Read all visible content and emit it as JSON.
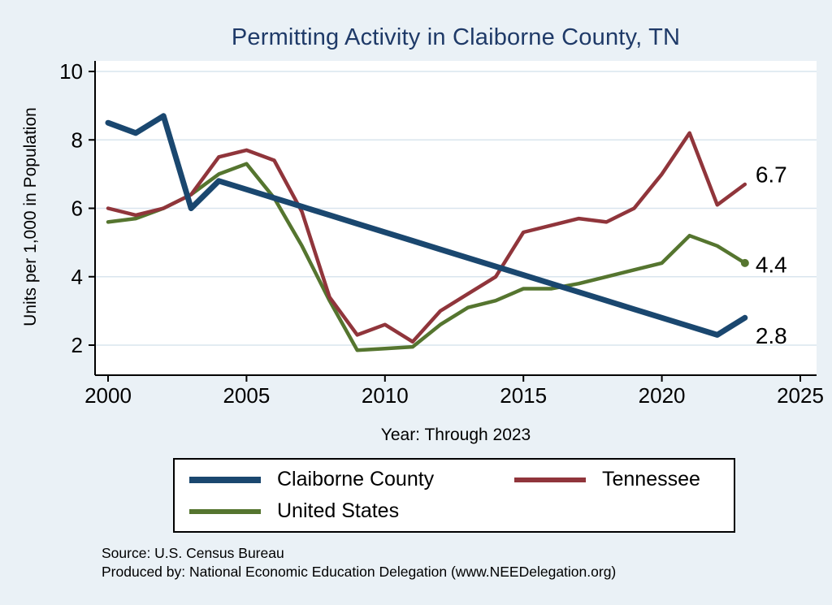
{
  "chart_data": {
    "type": "line",
    "title": "Permitting Activity in Claiborne County, TN",
    "xlabel": "Year: Through 2023",
    "ylabel": "Units per 1,000 in Population",
    "xlim": [
      2000,
      2025
    ],
    "ylim": [
      2,
      10
    ],
    "xticks": [
      2000,
      2005,
      2010,
      2015,
      2020,
      2025
    ],
    "yticks": [
      2,
      4,
      6,
      8,
      10
    ],
    "grid": "horizontal",
    "legend_position": "bottom",
    "x": [
      2000,
      2001,
      2002,
      2003,
      2004,
      2005,
      2006,
      2007,
      2008,
      2009,
      2010,
      2011,
      2012,
      2013,
      2014,
      2015,
      2016,
      2017,
      2018,
      2019,
      2020,
      2021,
      2022,
      2023
    ],
    "series": [
      {
        "name": "Claiborne County",
        "color": "#1a476f",
        "line_width": 7,
        "end_label": "2.8",
        "end_marker": false,
        "values": [
          8.5,
          8.2,
          8.7,
          6.0,
          6.8,
          6.55,
          6.3,
          6.05,
          5.8,
          5.55,
          5.3,
          5.05,
          4.8,
          4.55,
          4.3,
          4.05,
          3.8,
          3.55,
          3.3,
          3.05,
          2.8,
          2.55,
          2.3,
          2.8
        ]
      },
      {
        "name": "Tennessee",
        "color": "#90353b",
        "line_width": 4.5,
        "end_label": "6.7",
        "end_marker": false,
        "values": [
          6.0,
          5.8,
          6.0,
          6.4,
          7.5,
          7.7,
          7.4,
          5.9,
          3.4,
          2.3,
          2.6,
          2.1,
          3.0,
          3.5,
          4.0,
          5.3,
          5.5,
          5.7,
          5.6,
          6.0,
          7.0,
          8.2,
          6.1,
          6.7
        ]
      },
      {
        "name": "United States",
        "color": "#55752f",
        "line_width": 4.5,
        "end_label": "4.4",
        "end_marker": true,
        "values": [
          5.6,
          5.7,
          6.0,
          6.4,
          7.0,
          7.3,
          6.3,
          4.9,
          3.3,
          1.85,
          1.9,
          1.95,
          2.6,
          3.1,
          3.3,
          3.65,
          3.65,
          3.8,
          4.0,
          4.2,
          4.4,
          5.2,
          4.9,
          4.4
        ]
      }
    ]
  },
  "colors": {
    "background": "#eaf1f6",
    "plot_background": "#ffffff",
    "gridline": "#d9e5ee",
    "axis": "#000000",
    "title": "#1f3a68"
  },
  "footer": {
    "source": "Source: U.S. Census Bureau",
    "produced_by": "Produced by: National Economic Education Delegation (www.NEEDelegation.org)"
  }
}
